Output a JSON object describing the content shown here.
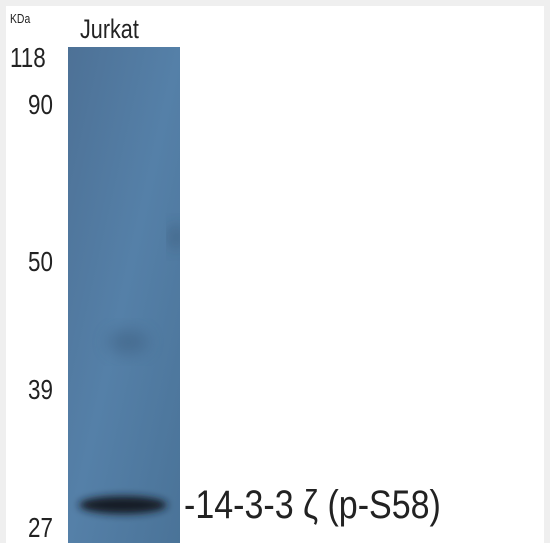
{
  "unit": "KDa",
  "lane": "Jurkat",
  "markers": [
    118,
    90,
    50,
    39,
    27
  ],
  "band_label": "-14-3-3 ζ (p-S58)"
}
